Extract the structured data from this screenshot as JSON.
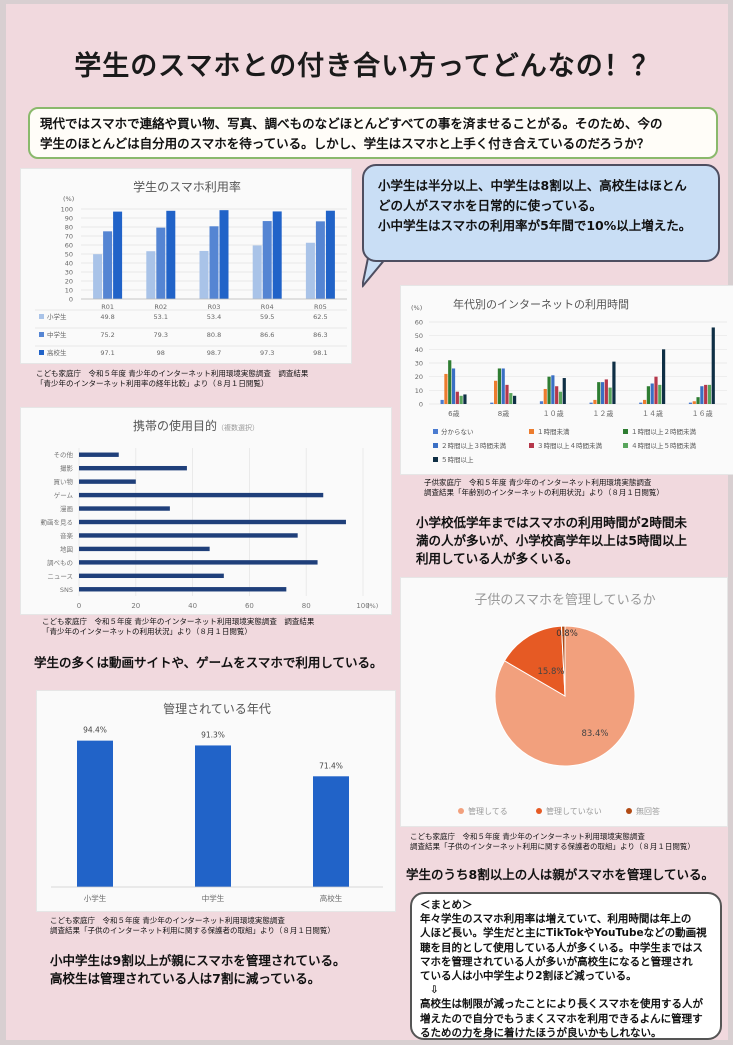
{
  "title": "学生のスマホとの付き合い方ってどんなの！？",
  "intro": {
    "line1": "現代ではスマホで連絡や買い物、写真、調べものなどほとんどすべての事を済ませることがる。そのため、今の",
    "line2": "学生のほとんどは自分用のスマホを待っている。しかし、学生はスマホと上手く付き合えているのだろうか？"
  },
  "bubble": {
    "line1": "小学生は半分以上、中学生は8割以上、高校生はほとん",
    "line2": "どの人がスマホを日常的に使っている。",
    "line3": "小中学生はスマホの利用率が5年間で10%以上増えた。"
  },
  "chart1_caption": {
    "line1": "こども家庭庁　令和５年度 青少年のインターネット利用環境実態調査　調査結果",
    "line2": "「青少年のインターネット利用率の経年比較」より（８月１日閲覧）"
  },
  "chart2_caption": {
    "line1": "子供家庭庁　令和５年度 青少年のインターネット利用環境実態調査",
    "line2": "調査結果「年齢別のインターネットの利用状況」より（８月１日閲覧）"
  },
  "chart2_comment": {
    "line1": "小学校低学年まではスマホの利用時間が2時間未",
    "line2": "満の人が多いが、小学校高学年以上は5時間以上",
    "line3": "利用している人が多くいる。"
  },
  "chart3_caption": {
    "line1": "こども家庭庁　令和５年度 青少年のインターネット利用環境実態調査　調査結果",
    "line2": "「青少年のインターネットの利用状況」より（８月１日閲覧）"
  },
  "chart3_comment": "学生の多くは動画サイトや、ゲームをスマホで利用している。",
  "chart4_caption": {
    "line1": "こども家庭庁　令和５年度 青少年のインターネット利用環境実態調査",
    "line2": "調査結果「子供のインターネット利用に関する保護者の取組」より（８月１日閲覧）"
  },
  "chart4_comment": "学生のうち8割以上の人は親がスマホを管理している。",
  "chart5_caption": {
    "line1": "こども家庭庁　令和５年度 青少年のインターネット利用環境実態調査",
    "line2": "調査結果「子供のインターネット利用に関する保護者の取組」より（８月１日閲覧）"
  },
  "chart5_comment": {
    "line1": "小中学生は9割以上が親にスマホを管理されている。",
    "line2": "高校生は管理されている人は7割に減っている。"
  },
  "matome": {
    "head": "＜まとめ＞",
    "line1": "年々学生のスマホ利用率は増えていて、利用時間は年上の",
    "line2": "人ほど長い。学生だと主にTikTokやYouTubeなどの動画視",
    "line3": "聴を目的として使用している人が多くいる。中学生まではス",
    "line4": "マホを管理されている人が多いが高校生になると管理され",
    "line5": "ている人は小中学生より2割ほど減っている。",
    "arrow": "⇩",
    "line6": "高校生は制限が減ったことにより長くスマホを使用する人が",
    "line7": "増えたので自分でもうまくスマホを利用できるよんに管理す",
    "line8": "るための力を身に着けたほうが良いかもしれない。"
  },
  "colors": {
    "elementary": "#a9c3e8",
    "middle": "#5585d3",
    "high": "#2163c8"
  },
  "chart_data": [
    {
      "type": "bar",
      "title": "学生のスマホ利用率",
      "ylabel": "(%)",
      "ylim": [
        0,
        100
      ],
      "yticks": [
        0,
        10,
        20,
        30,
        40,
        50,
        60,
        70,
        80,
        90,
        100
      ],
      "categories": [
        "R01",
        "R02",
        "R03",
        "R04",
        "R05"
      ],
      "series": [
        {
          "name": "小学生",
          "values": [
            49.8,
            53.1,
            53.4,
            59.5,
            62.5
          ],
          "table": [
            "49.8",
            "53.1",
            "53.4",
            "59.5",
            "62.5"
          ]
        },
        {
          "name": "中学生",
          "values": [
            75.2,
            79.3,
            80.8,
            86.6,
            86.3
          ],
          "table": [
            "75.2",
            "79.3",
            "80.8",
            "86.6",
            "86.3"
          ]
        },
        {
          "name": "高校生",
          "values": [
            97.1,
            98,
            98.7,
            97.3,
            98.1
          ],
          "table": [
            "97.1",
            "98",
            "98.7",
            "97.3",
            "98.1"
          ]
        }
      ],
      "legend": "table-below",
      "grid": true
    },
    {
      "type": "bar",
      "title": "年代別のインターネットの利用時間",
      "ylabel": "(%)",
      "ylim": [
        0,
        60
      ],
      "yticks": [
        0,
        10,
        20,
        30,
        40,
        50,
        60
      ],
      "categories": [
        "6歳",
        "8歳",
        "１０歳",
        "１２歳",
        "１４歳",
        "１６歳"
      ],
      "series": [
        {
          "name": "分からない",
          "color": "#4a7bd0",
          "values": [
            3,
            1,
            2,
            1,
            1,
            1
          ]
        },
        {
          "name": "１時間未満",
          "color": "#ec7c2e",
          "values": [
            22,
            17,
            11,
            3,
            3,
            2
          ]
        },
        {
          "name": "１時間以上２時間未満",
          "color": "#2e7d32",
          "values": [
            32,
            26,
            20,
            16,
            13,
            5
          ]
        },
        {
          "name": "２時間以上３時間未満",
          "color": "#3a6fc4",
          "values": [
            26,
            26,
            21,
            16,
            15,
            13
          ]
        },
        {
          "name": "３時間以上４時間未満",
          "color": "#b5374a",
          "values": [
            9,
            14,
            13,
            18,
            20,
            14
          ]
        },
        {
          "name": "４時間以上５時間未満",
          "color": "#58a55c",
          "values": [
            6,
            8,
            9,
            12,
            14,
            14
          ]
        },
        {
          "name": "５時間以上",
          "color": "#0f2f45",
          "values": [
            7,
            6,
            19,
            31,
            40,
            56
          ]
        }
      ],
      "legend": "bottom",
      "grid": true
    },
    {
      "type": "bar",
      "orientation": "horizontal",
      "title": "携帯の使用目的",
      "subtitle": "（複数選択）",
      "xlabel": "(%)",
      "xlim": [
        0,
        100
      ],
      "xticks": [
        0,
        20,
        40,
        60,
        80,
        100
      ],
      "categories": [
        "その他",
        "撮影",
        "買い物",
        "ゲーム",
        "漫画",
        "動画を見る",
        "音楽",
        "地図",
        "調べもの",
        "ニュース",
        "SNS"
      ],
      "values": [
        14,
        38,
        20,
        86,
        32,
        94,
        77,
        46,
        84,
        51,
        73
      ],
      "grid": true
    },
    {
      "type": "pie",
      "title": "子供のスマホを管理しているか",
      "categories": [
        "管理してる",
        "管理していない",
        "無回答"
      ],
      "values": [
        83.4,
        15.8,
        0.8
      ],
      "labels": [
        "83.4%",
        "15.8%",
        "0.8%"
      ],
      "colors": [
        "#f2a07d",
        "#e65a24",
        "#b14a14"
      ],
      "legend": "bottom"
    },
    {
      "type": "bar",
      "title": "管理されている年代",
      "categories": [
        "小学生",
        "中学生",
        "高校生"
      ],
      "values": [
        94.4,
        91.3,
        71.4
      ],
      "labels": [
        "94.4%",
        "91.3%",
        "71.4%"
      ],
      "ylim": [
        0,
        100
      ],
      "color": "#2163c8"
    }
  ]
}
